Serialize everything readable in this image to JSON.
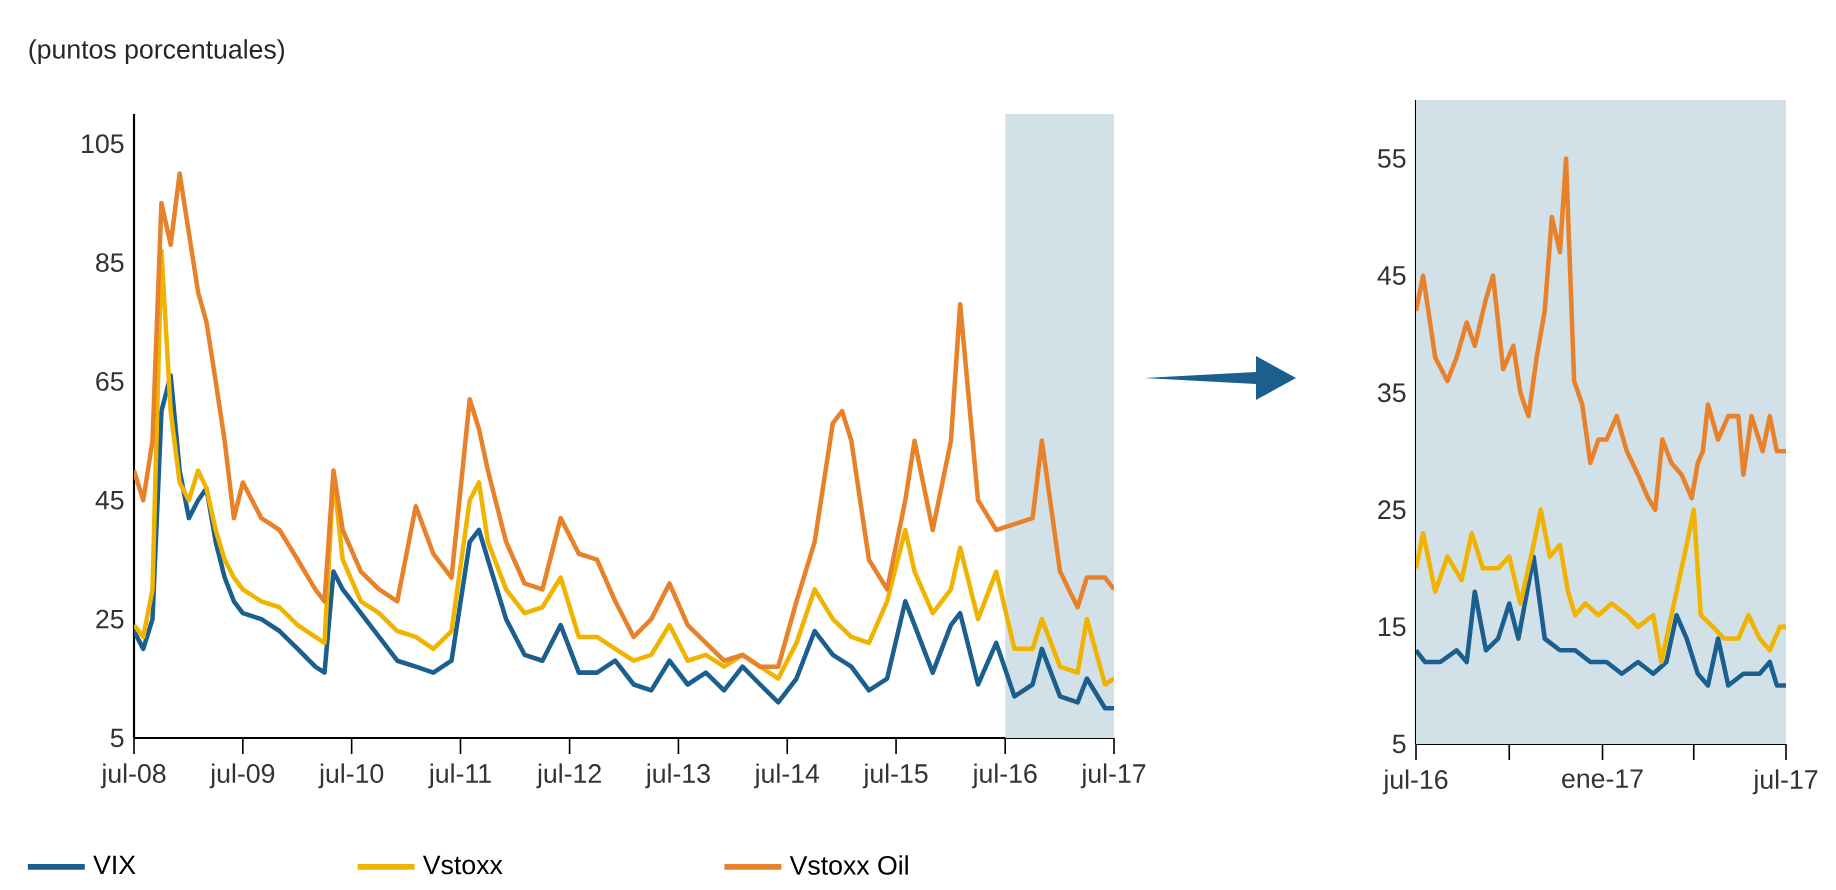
{
  "chart_data": [
    {
      "type": "line",
      "ylabel": "(puntos porcentuales)",
      "xlim": [
        "2008-07-01",
        "2017-07-01"
      ],
      "ylim": [
        5,
        110
      ],
      "yticks": [
        5,
        25,
        45,
        65,
        85,
        105
      ],
      "xticks": [
        {
          "value": "2008-07-01",
          "label": "jul-08"
        },
        {
          "value": "2009-07-01",
          "label": "jul-09"
        },
        {
          "value": "2010-07-01",
          "label": "jul-10"
        },
        {
          "value": "2011-07-01",
          "label": "jul-11"
        },
        {
          "value": "2012-07-01",
          "label": "jul-12"
        },
        {
          "value": "2013-07-01",
          "label": "jul-13"
        },
        {
          "value": "2014-07-01",
          "label": "jul-14"
        },
        {
          "value": "2015-07-01",
          "label": "jul-15"
        },
        {
          "value": "2016-07-01",
          "label": "jul-16"
        },
        {
          "value": "2017-07-01",
          "label": "jul-17"
        }
      ],
      "bands": [
        {
          "axis": "x",
          "from": "2016-07-01",
          "to": "2017-07-01",
          "color": "#d2e0e8"
        }
      ],
      "legend": "bottom",
      "grid": false,
      "series": [
        {
          "name": "VIX",
          "color": "#1a5f8e",
          "x": [
            "2008-07",
            "2008-08",
            "2008-09",
            "2008-10",
            "2008-11",
            "2008-12",
            "2009-01",
            "2009-02",
            "2009-03",
            "2009-04",
            "2009-05",
            "2009-06",
            "2009-07",
            "2009-09",
            "2009-11",
            "2010-01",
            "2010-03",
            "2010-04",
            "2010-05",
            "2010-06",
            "2010-08",
            "2010-10",
            "2010-12",
            "2011-02",
            "2011-04",
            "2011-06",
            "2011-08",
            "2011-09",
            "2011-10",
            "2011-12",
            "2012-02",
            "2012-04",
            "2012-06",
            "2012-08",
            "2012-10",
            "2012-12",
            "2013-02",
            "2013-04",
            "2013-06",
            "2013-08",
            "2013-10",
            "2013-12",
            "2014-02",
            "2014-04",
            "2014-06",
            "2014-08",
            "2014-10",
            "2014-12",
            "2015-02",
            "2015-04",
            "2015-06",
            "2015-08",
            "2015-09",
            "2015-11",
            "2016-01",
            "2016-02",
            "2016-04",
            "2016-06",
            "2016-08",
            "2016-10",
            "2016-11",
            "2017-01",
            "2017-03",
            "2017-04",
            "2017-06",
            "2017-07"
          ],
          "values": [
            23,
            20,
            25,
            60,
            66,
            50,
            42,
            45,
            47,
            38,
            32,
            28,
            26,
            25,
            23,
            20,
            17,
            16,
            33,
            30,
            26,
            22,
            18,
            17,
            16,
            18,
            38,
            40,
            35,
            25,
            19,
            18,
            24,
            16,
            16,
            18,
            14,
            13,
            18,
            14,
            16,
            13,
            17,
            14,
            11,
            15,
            23,
            19,
            17,
            13,
            15,
            28,
            24,
            16,
            24,
            26,
            14,
            21,
            12,
            14,
            20,
            12,
            11,
            15,
            10,
            10
          ]
        },
        {
          "name": "Vstoxx",
          "color": "#f0b400",
          "x": [
            "2008-07",
            "2008-08",
            "2008-09",
            "2008-10",
            "2008-11",
            "2008-12",
            "2009-01",
            "2009-02",
            "2009-03",
            "2009-04",
            "2009-05",
            "2009-06",
            "2009-07",
            "2009-09",
            "2009-11",
            "2010-01",
            "2010-03",
            "2010-04",
            "2010-05",
            "2010-06",
            "2010-08",
            "2010-10",
            "2010-12",
            "2011-02",
            "2011-04",
            "2011-06",
            "2011-08",
            "2011-09",
            "2011-10",
            "2011-12",
            "2012-02",
            "2012-04",
            "2012-06",
            "2012-08",
            "2012-10",
            "2012-12",
            "2013-02",
            "2013-04",
            "2013-06",
            "2013-08",
            "2013-10",
            "2013-12",
            "2014-02",
            "2014-04",
            "2014-06",
            "2014-08",
            "2014-10",
            "2014-12",
            "2015-02",
            "2015-04",
            "2015-06",
            "2015-08",
            "2015-09",
            "2015-11",
            "2016-01",
            "2016-02",
            "2016-04",
            "2016-06",
            "2016-08",
            "2016-10",
            "2016-11",
            "2017-01",
            "2017-03",
            "2017-04",
            "2017-06",
            "2017-07"
          ],
          "values": [
            24,
            22,
            30,
            87,
            60,
            48,
            45,
            50,
            47,
            40,
            35,
            32,
            30,
            28,
            27,
            24,
            22,
            21,
            49,
            35,
            28,
            26,
            23,
            22,
            20,
            23,
            45,
            48,
            38,
            30,
            26,
            27,
            32,
            22,
            22,
            20,
            18,
            19,
            24,
            18,
            19,
            17,
            19,
            17,
            15,
            21,
            30,
            25,
            22,
            21,
            28,
            40,
            33,
            26,
            30,
            37,
            25,
            33,
            20,
            20,
            25,
            17,
            16,
            25,
            14,
            15
          ]
        },
        {
          "name": "Vstoxx Oil",
          "color": "#e8822a",
          "x": [
            "2008-07",
            "2008-08",
            "2008-09",
            "2008-10",
            "2008-11",
            "2008-12",
            "2009-01",
            "2009-02",
            "2009-03",
            "2009-04",
            "2009-05",
            "2009-06",
            "2009-07",
            "2009-09",
            "2009-11",
            "2010-01",
            "2010-03",
            "2010-04",
            "2010-05",
            "2010-06",
            "2010-08",
            "2010-10",
            "2010-12",
            "2011-02",
            "2011-04",
            "2011-06",
            "2011-08",
            "2011-09",
            "2011-10",
            "2011-12",
            "2012-02",
            "2012-04",
            "2012-06",
            "2012-08",
            "2012-10",
            "2012-12",
            "2013-02",
            "2013-04",
            "2013-06",
            "2013-08",
            "2013-10",
            "2013-12",
            "2014-02",
            "2014-04",
            "2014-06",
            "2014-08",
            "2014-10",
            "2014-12",
            "2015-01",
            "2015-02",
            "2015-04",
            "2015-06",
            "2015-08",
            "2015-09",
            "2015-11",
            "2016-01",
            "2016-02",
            "2016-04",
            "2016-06",
            "2016-08",
            "2016-10",
            "2016-11",
            "2017-01",
            "2017-03",
            "2017-04",
            "2017-06",
            "2017-07"
          ],
          "values": [
            50,
            45,
            55,
            95,
            88,
            100,
            90,
            80,
            75,
            65,
            55,
            42,
            48,
            42,
            40,
            35,
            30,
            28,
            50,
            40,
            33,
            30,
            28,
            44,
            36,
            32,
            62,
            57,
            50,
            38,
            31,
            30,
            42,
            36,
            35,
            28,
            22,
            25,
            31,
            24,
            21,
            18,
            19,
            17,
            17,
            28,
            38,
            58,
            60,
            55,
            35,
            30,
            45,
            55,
            40,
            55,
            78,
            45,
            40,
            41,
            42,
            55,
            33,
            27,
            32,
            32,
            30
          ]
        }
      ]
    },
    {
      "type": "line",
      "xlim": [
        "2016-07-01",
        "2017-07-01"
      ],
      "ylim": [
        5,
        60
      ],
      "yticks": [
        5,
        15,
        25,
        35,
        45,
        55
      ],
      "xticks": [
        {
          "value": "2016-07-01",
          "label": "jul-16"
        },
        {
          "value": "2016-10-01",
          "label": null
        },
        {
          "value": "2017-01-01",
          "label": "ene-17"
        },
        {
          "value": "2017-04-01",
          "label": null
        },
        {
          "value": "2017-07-01",
          "label": "jul-17"
        }
      ],
      "bands": [
        {
          "axis": "x",
          "from": "2016-07-01",
          "to": "2017-07-01",
          "color": "#d2e0e8"
        }
      ],
      "grid": false,
      "series": [
        {
          "color": "#1a5f8e",
          "x": [
            "2016-07-01",
            "2016-07-10",
            "2016-07-25",
            "2016-08-10",
            "2016-08-20",
            "2016-08-28",
            "2016-09-08",
            "2016-09-20",
            "2016-10-01",
            "2016-10-10",
            "2016-10-25",
            "2016-11-05",
            "2016-11-20",
            "2016-12-05",
            "2016-12-20",
            "2017-01-05",
            "2017-01-20",
            "2017-02-05",
            "2017-02-20",
            "2017-03-05",
            "2017-03-15",
            "2017-03-25",
            "2017-04-05",
            "2017-04-15",
            "2017-04-25",
            "2017-05-05",
            "2017-05-20",
            "2017-06-05",
            "2017-06-15",
            "2017-06-22",
            "2017-07-01"
          ],
          "values": [
            13,
            12,
            12,
            13,
            12,
            18,
            13,
            14,
            17,
            14,
            21,
            14,
            13,
            13,
            12,
            12,
            11,
            12,
            11,
            12,
            16,
            14,
            11,
            10,
            14,
            10,
            11,
            11,
            12,
            10,
            10
          ]
        },
        {
          "color": "#f0b400",
          "x": [
            "2016-07-01",
            "2016-07-08",
            "2016-07-20",
            "2016-08-01",
            "2016-08-15",
            "2016-08-25",
            "2016-09-05",
            "2016-09-20",
            "2016-10-01",
            "2016-10-12",
            "2016-10-25",
            "2016-11-01",
            "2016-11-10",
            "2016-11-20",
            "2016-11-28",
            "2016-12-05",
            "2016-12-15",
            "2016-12-28",
            "2017-01-10",
            "2017-01-25",
            "2017-02-05",
            "2017-02-20",
            "2017-02-28",
            "2017-03-10",
            "2017-03-25",
            "2017-04-01",
            "2017-04-08",
            "2017-04-20",
            "2017-05-01",
            "2017-05-15",
            "2017-05-25",
            "2017-06-05",
            "2017-06-15",
            "2017-06-25",
            "2017-07-01"
          ],
          "values": [
            20,
            23,
            18,
            21,
            19,
            23,
            20,
            20,
            21,
            17,
            22,
            25,
            21,
            22,
            18,
            16,
            17,
            16,
            17,
            16,
            15,
            16,
            12,
            16,
            22,
            25,
            16,
            15,
            14,
            14,
            16,
            14,
            13,
            15,
            15
          ]
        },
        {
          "color": "#e8822a",
          "x": [
            "2016-07-01",
            "2016-07-08",
            "2016-07-20",
            "2016-08-01",
            "2016-08-10",
            "2016-08-20",
            "2016-08-28",
            "2016-09-08",
            "2016-09-15",
            "2016-09-25",
            "2016-10-05",
            "2016-10-12",
            "2016-10-20",
            "2016-10-28",
            "2016-11-05",
            "2016-11-12",
            "2016-11-20",
            "2016-11-26",
            "2016-12-04",
            "2016-12-12",
            "2016-12-20",
            "2016-12-28",
            "2017-01-05",
            "2017-01-15",
            "2017-01-25",
            "2017-02-05",
            "2017-02-15",
            "2017-02-22",
            "2017-03-01",
            "2017-03-10",
            "2017-03-20",
            "2017-03-30",
            "2017-04-05",
            "2017-04-10",
            "2017-04-15",
            "2017-04-25",
            "2017-05-05",
            "2017-05-15",
            "2017-05-20",
            "2017-05-28",
            "2017-06-08",
            "2017-06-15",
            "2017-06-22",
            "2017-07-01"
          ],
          "values": [
            42,
            45,
            38,
            36,
            38,
            41,
            39,
            43,
            45,
            37,
            39,
            35,
            33,
            38,
            42,
            50,
            47,
            55,
            36,
            34,
            29,
            31,
            31,
            33,
            30,
            28,
            26,
            25,
            31,
            29,
            28,
            26,
            29,
            30,
            34,
            31,
            33,
            33,
            28,
            33,
            30,
            33,
            30,
            30
          ]
        }
      ]
    }
  ]
}
